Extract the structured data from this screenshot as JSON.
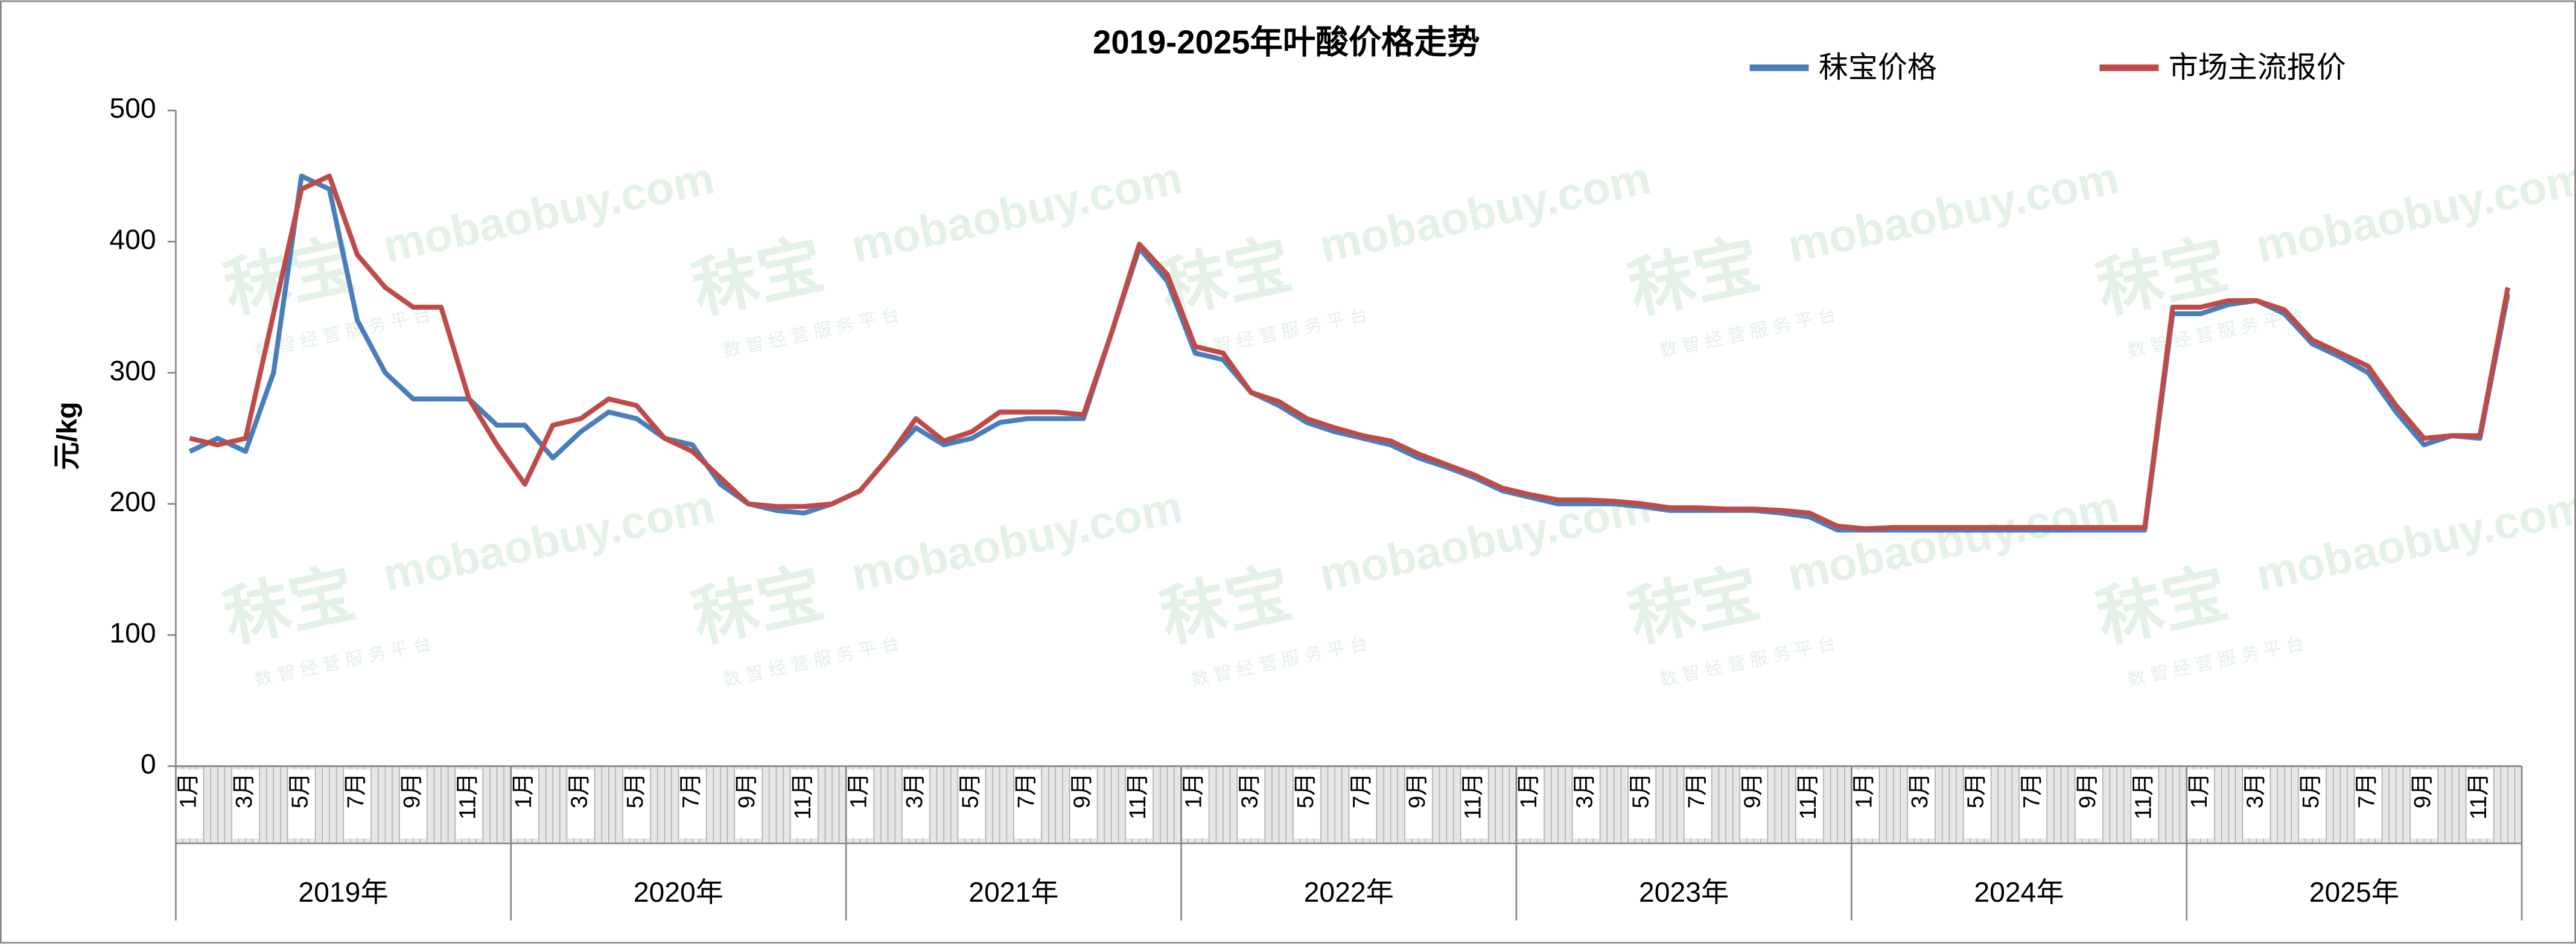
{
  "chart_data": {
    "type": "line",
    "title": "2019-2025年叶酸价格走势",
    "y_label": "元/kg",
    "watermark": [
      "秣宝",
      "mobaobuy.com",
      "数 智 经 营 服 务 平 台"
    ],
    "categories": [
      "1月",
      null,
      "3月",
      null,
      "5月",
      null,
      "7月",
      null,
      "9月",
      null,
      "11月",
      null,
      "1月",
      null,
      "3月",
      null,
      "5月",
      null,
      "7月",
      null,
      "9月",
      null,
      "11月",
      null,
      "1月",
      null,
      "3月",
      null,
      "5月",
      null,
      "7月",
      null,
      "9月",
      null,
      "11月",
      null,
      "1月",
      null,
      "3月",
      null,
      "5月",
      null,
      "7月",
      null,
      "9月",
      null,
      "11月",
      null,
      "1月",
      null,
      "3月",
      null,
      "5月",
      null,
      "7月",
      null,
      "9月",
      null,
      "11月",
      null,
      "1月",
      null,
      "3月",
      null,
      "5月",
      null,
      "7月",
      null,
      "9月",
      null,
      "11月",
      null,
      "1月",
      null,
      "3月",
      null,
      "5月",
      null,
      "7月",
      null,
      "9月",
      null,
      "11月",
      null
    ],
    "groups": [
      "2019年",
      "2020年",
      "2021年",
      "2022年",
      "2023年",
      "2024年",
      "2025年"
    ],
    "series": [
      {
        "name": "秣宝价格",
        "color": "#4a7ebb",
        "values": [
          240,
          250,
          240,
          300,
          450,
          440,
          340,
          300,
          280,
          280,
          280,
          260,
          260,
          235,
          255,
          270,
          265,
          250,
          245,
          215,
          200,
          195,
          193,
          200,
          210,
          235,
          258,
          245,
          250,
          262,
          265,
          265,
          265,
          330,
          395,
          370,
          315,
          310,
          285,
          275,
          262,
          255,
          250,
          245,
          235,
          228,
          220,
          210,
          205,
          200,
          200,
          200,
          198,
          195,
          195,
          195,
          195,
          193,
          190,
          180,
          180,
          180,
          180,
          180,
          180,
          180,
          180,
          180,
          180,
          180,
          180,
          345,
          345,
          352,
          355,
          345,
          322,
          312,
          300,
          270,
          245,
          252,
          250,
          360
        ]
      },
      {
        "name": "市场主流报价",
        "color": "#be4b48",
        "values": [
          250,
          245,
          250,
          345,
          440,
          450,
          390,
          365,
          350,
          350,
          280,
          245,
          215,
          260,
          265,
          280,
          275,
          250,
          240,
          220,
          200,
          198,
          198,
          200,
          210,
          235,
          265,
          248,
          255,
          270,
          270,
          270,
          268,
          330,
          398,
          375,
          320,
          315,
          285,
          278,
          265,
          258,
          252,
          248,
          238,
          230,
          222,
          212,
          207,
          203,
          203,
          202,
          200,
          197,
          197,
          196,
          196,
          195,
          193,
          183,
          181,
          182,
          182,
          182,
          182,
          182,
          182,
          182,
          182,
          182,
          182,
          350,
          350,
          355,
          355,
          348,
          325,
          315,
          305,
          275,
          250,
          252,
          252,
          365
        ]
      }
    ],
    "ylim": [
      0,
      500
    ],
    "yticks": [
      0,
      100,
      200,
      300,
      400,
      500
    ],
    "legend": "top-right"
  }
}
